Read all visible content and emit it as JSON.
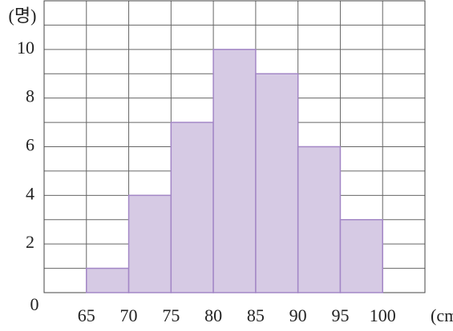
{
  "chart_data": {
    "type": "histogram",
    "ylabel": "(명)",
    "xlabel": "(cm)",
    "bins": [
      65,
      70,
      75,
      80,
      85,
      90,
      95,
      100
    ],
    "counts": [
      1,
      4,
      7,
      10,
      9,
      6,
      3
    ],
    "color": "#d6cae4",
    "edgecolor": "#a387c6",
    "xlim": [
      60,
      105
    ],
    "xticks": [
      65,
      70,
      75,
      80,
      85,
      90,
      95,
      100
    ],
    "ylim": [
      0,
      12
    ],
    "yticks": [
      0,
      2,
      4,
      6,
      8,
      10
    ],
    "grid": true,
    "minor_grid": true
  }
}
